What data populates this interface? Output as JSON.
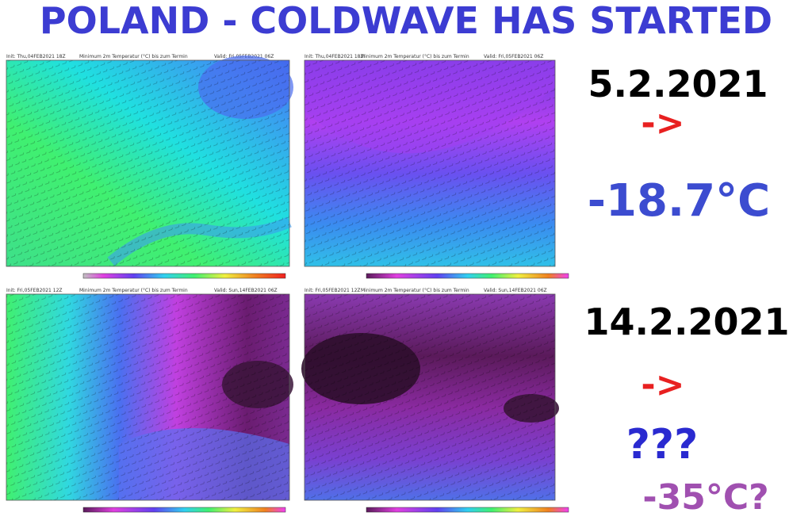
{
  "title": "POLAND - COLDWAVE HAS STARTED",
  "panels": [
    {
      "date": "5.2.2021",
      "arrow": "->",
      "value": "-18.7°C"
    },
    {
      "date": "14.2.2021",
      "arrow": "->",
      "question": "???",
      "value": "-35°C?"
    }
  ],
  "maps": [
    {
      "init": "Init: Thu,04FEB2021 18Z",
      "field": "Minimum 2m Temperatur (°C) bis zum Termin",
      "valid": "Valid: Fri,05FEB2021 06Z"
    },
    {
      "init": "Init: Thu,04FEB2021 18Z",
      "field": "Minimum 2m Temperatur (°C) bis zum Termin",
      "valid": "Valid: Fri,05FEB2021 06Z"
    },
    {
      "init": "Init: Fri,05FEB2021 12Z",
      "field": "Minimum 2m Temperatur (°C) bis zum Termin",
      "valid": "Valid: Sun,14FEB2021 06Z"
    },
    {
      "init": "Init: Fri,05FEB2021 12Z",
      "field": "Minimum 2m Temperatur (°C) bis zum Termin",
      "valid": "Valid: Sun,14FEB2021 06Z"
    }
  ]
}
